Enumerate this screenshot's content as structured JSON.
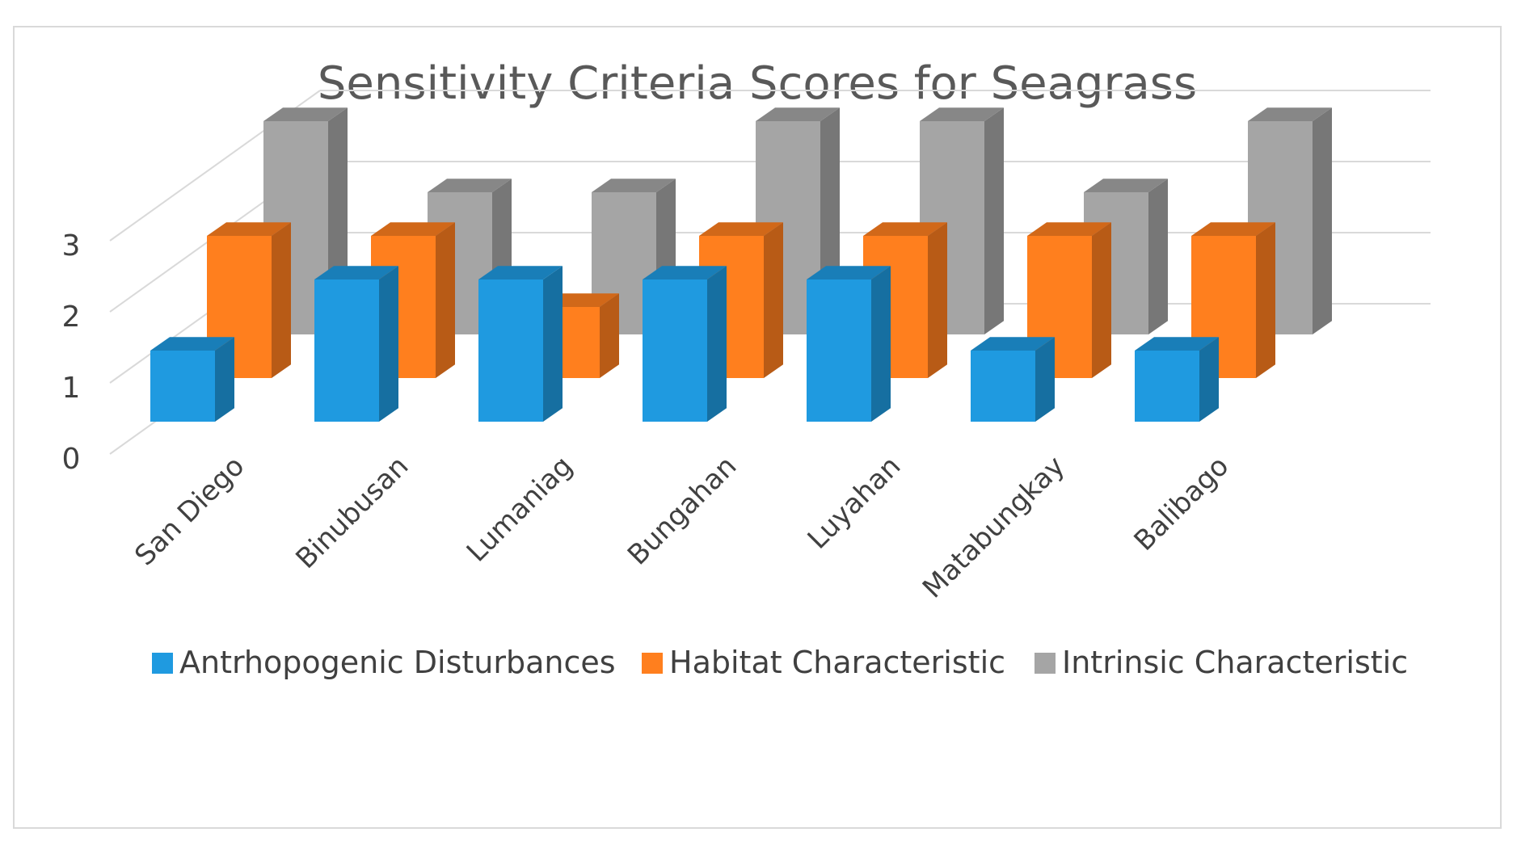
{
  "chart_data": {
    "type": "bar",
    "title": "Sensitivity Criteria Scores for Seagrass",
    "categories": [
      "San Diego",
      "Binubusan",
      "Lumaniag",
      "Bungahan",
      "Luyahan",
      "Matabungkay",
      "Balibago"
    ],
    "series": [
      {
        "name": "Antrhopogenic Disturbances",
        "values": [
          1,
          2,
          2,
          2,
          2,
          1,
          1
        ],
        "color": "#1F9AE0"
      },
      {
        "name": "Habitat Characteristic",
        "values": [
          2,
          2,
          1,
          2,
          2,
          2,
          2
        ],
        "color": "#FF7F1E"
      },
      {
        "name": "Intrinsic Characteristic",
        "values": [
          3,
          2,
          2,
          3,
          3,
          2,
          3
        ],
        "color": "#A5A5A5"
      }
    ],
    "yticks": [
      0,
      1,
      2,
      3
    ],
    "ylim": [
      0,
      3
    ],
    "legend_position": "bottom"
  }
}
